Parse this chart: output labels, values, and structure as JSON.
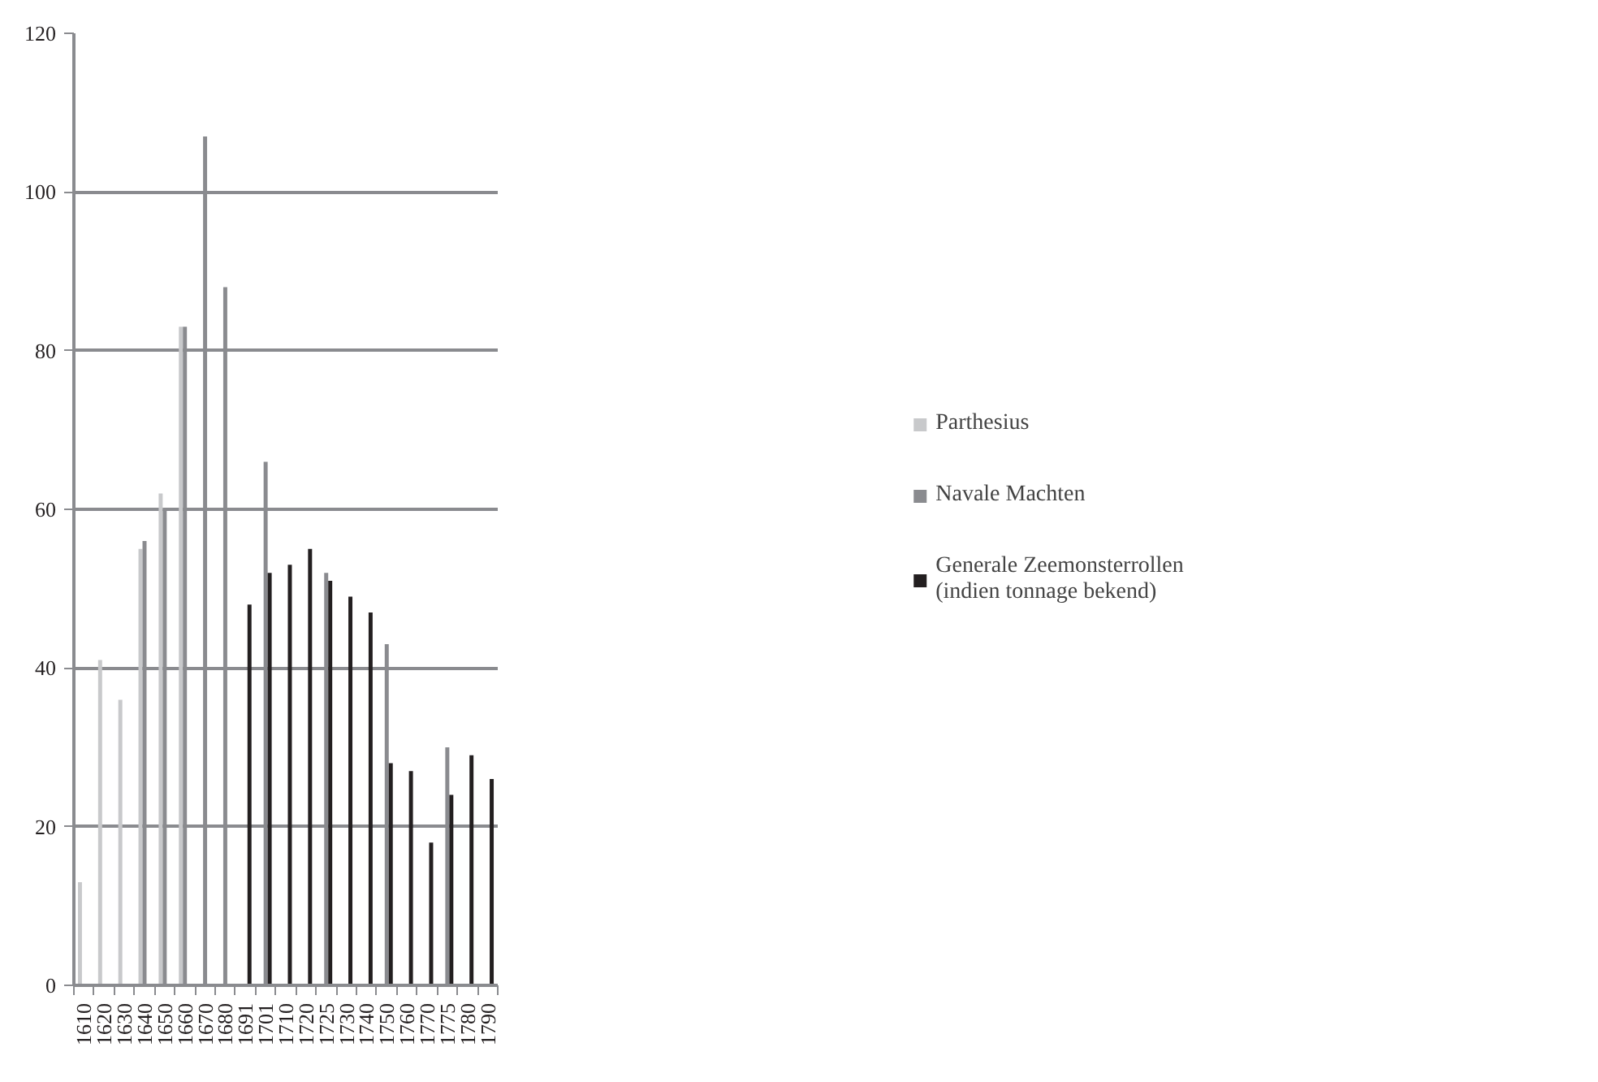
{
  "chart_data": {
    "type": "bar",
    "categories": [
      "1610",
      "1620",
      "1630",
      "1640",
      "1650",
      "1660",
      "1670",
      "1680",
      "1691",
      "1701",
      "1710",
      "1720",
      "1725",
      "1730",
      "1740",
      "1750",
      "1760",
      "1770",
      "1775",
      "1780",
      "1790"
    ],
    "series": [
      {
        "name": "Parthesius",
        "color": "#c8c9cb",
        "values": [
          13,
          41,
          36,
          55,
          62,
          83,
          null,
          null,
          null,
          null,
          null,
          null,
          null,
          null,
          null,
          null,
          null,
          null,
          null,
          null,
          null
        ]
      },
      {
        "name": "Navale Machten",
        "color": "#8a8b8f",
        "values": [
          null,
          null,
          null,
          56,
          60,
          83,
          107,
          88,
          null,
          66,
          null,
          null,
          52,
          null,
          null,
          43,
          null,
          null,
          30,
          null,
          null
        ]
      },
      {
        "name": "Generale Zeemonsterrollen\n(indien tonnage bekend)",
        "color": "#231f20",
        "values": [
          null,
          null,
          null,
          null,
          null,
          null,
          null,
          null,
          48,
          52,
          53,
          55,
          51,
          49,
          47,
          28,
          27,
          18,
          24,
          29,
          26
        ]
      }
    ],
    "ylim": [
      0,
      120
    ],
    "yticks": [
      0,
      20,
      40,
      60,
      80,
      100,
      120
    ],
    "grid": "y",
    "legend": "right"
  }
}
